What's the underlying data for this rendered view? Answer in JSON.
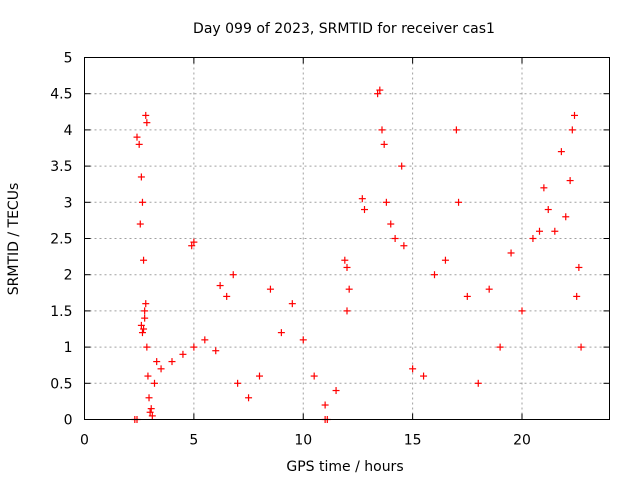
{
  "chart_data": {
    "type": "scatter",
    "title": "Day 099 of 2023, SRMTID for receiver cas1",
    "xlabel": "GPS time / hours",
    "ylabel": "SRMTID / TECUs",
    "xlim": [
      0,
      24
    ],
    "ylim": [
      0,
      5
    ],
    "xticks": [
      0,
      5,
      10,
      15,
      20
    ],
    "yticks": [
      0,
      0.5,
      1,
      1.5,
      2,
      2.5,
      3,
      3.5,
      4,
      4.5,
      5
    ],
    "xtick_labels": [
      "0",
      "5",
      "10",
      "15",
      "20"
    ],
    "ytick_labels": [
      "0",
      "0.5",
      "1",
      "1.5",
      "2",
      "2.5",
      "3",
      "3.5",
      "4",
      "4.5",
      "5"
    ],
    "grid": true,
    "marker": "+",
    "color": "#ff0000",
    "x_range_of_data": [
      2.3,
      22.7
    ],
    "series": [
      {
        "name": "SRMTID",
        "segments": [
          {
            "x": [
              2.3,
              2.4
            ],
            "y": [
              0.0,
              0.0
            ]
          },
          {
            "x": [
              2.4,
              2.5,
              2.55,
              2.6,
              2.65,
              2.7,
              2.75,
              2.8,
              2.85
            ],
            "y": [
              3.9,
              3.8,
              2.7,
              3.35,
              3.0,
              2.2,
              1.5,
              4.2,
              4.1
            ]
          },
          {
            "x": [
              2.6,
              2.65,
              2.7,
              2.75,
              2.8,
              2.85,
              2.9,
              2.95,
              3.0,
              3.05,
              3.1,
              3.2,
              3.3
            ],
            "y": [
              1.3,
              1.2,
              1.25,
              1.4,
              1.6,
              1.0,
              0.6,
              0.3,
              0.1,
              0.15,
              0.05,
              0.5,
              0.8
            ]
          },
          {
            "x": [
              3.5,
              4.0,
              4.5,
              5.0,
              5.5,
              6.0
            ],
            "y": [
              0.7,
              0.8,
              0.9,
              1.0,
              1.1,
              0.95
            ]
          },
          {
            "x": [
              4.9,
              5.0,
              6.2,
              6.5,
              6.8,
              7.0,
              7.5,
              8.0,
              8.5,
              9.0,
              9.5,
              10.0,
              10.5,
              11.0,
              11.5,
              12.0
            ],
            "y": [
              2.4,
              2.45,
              1.85,
              1.7,
              2.0,
              0.5,
              0.3,
              0.6,
              1.8,
              1.2,
              1.6,
              1.1,
              0.6,
              0.2,
              0.4,
              1.5
            ]
          },
          {
            "x": [
              11.0,
              11.1,
              11.9,
              12.0,
              12.1,
              12.7,
              12.8,
              13.4,
              13.5,
              13.6,
              13.7,
              13.8,
              14.0,
              14.2,
              14.5,
              14.6
            ],
            "y": [
              0.0,
              0.0,
              2.2,
              2.1,
              1.8,
              3.05,
              2.9,
              4.5,
              4.55,
              4.0,
              3.8,
              3.0,
              2.7,
              2.5,
              3.5,
              2.4
            ]
          },
          {
            "x": [
              15.0,
              15.5,
              16.0,
              16.5,
              17.0,
              17.1,
              17.5,
              18.0,
              18.5,
              19.0,
              19.5,
              20.0
            ],
            "y": [
              0.7,
              0.6,
              2.0,
              2.2,
              4.0,
              3.0,
              1.7,
              0.5,
              1.8,
              1.0,
              2.3,
              1.5
            ]
          },
          {
            "x": [
              20.5,
              20.8,
              21.0,
              21.2,
              21.5,
              21.8,
              22.0,
              22.2,
              22.3,
              22.4,
              22.5,
              22.6,
              22.7
            ],
            "y": [
              2.5,
              2.6,
              3.2,
              2.9,
              2.6,
              3.7,
              2.8,
              3.3,
              4.0,
              4.2,
              1.7,
              2.1,
              1.0
            ]
          }
        ]
      }
    ]
  }
}
